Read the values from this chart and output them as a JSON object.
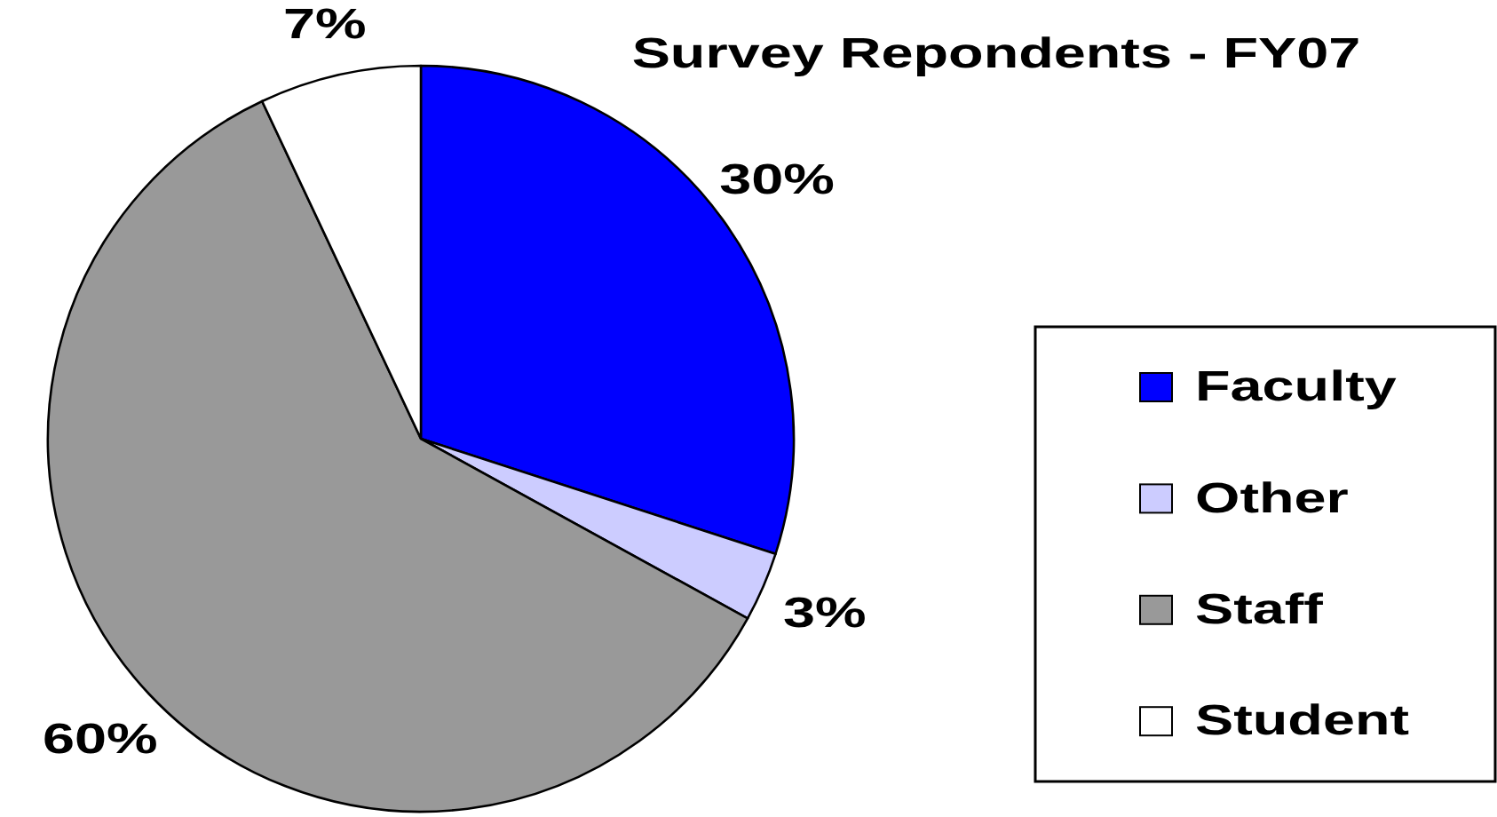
{
  "chart_data": {
    "type": "pie",
    "title": "Survey Repondents - FY07",
    "categories": [
      "Faculty",
      "Other",
      "Staff",
      "Student"
    ],
    "values": [
      30,
      3,
      60,
      7
    ],
    "colors": [
      "#0000ff",
      "#ccccff",
      "#999999",
      "#ffffff"
    ],
    "value_labels": [
      "30%",
      "3%",
      "60%",
      "7%"
    ],
    "legend": "right"
  }
}
